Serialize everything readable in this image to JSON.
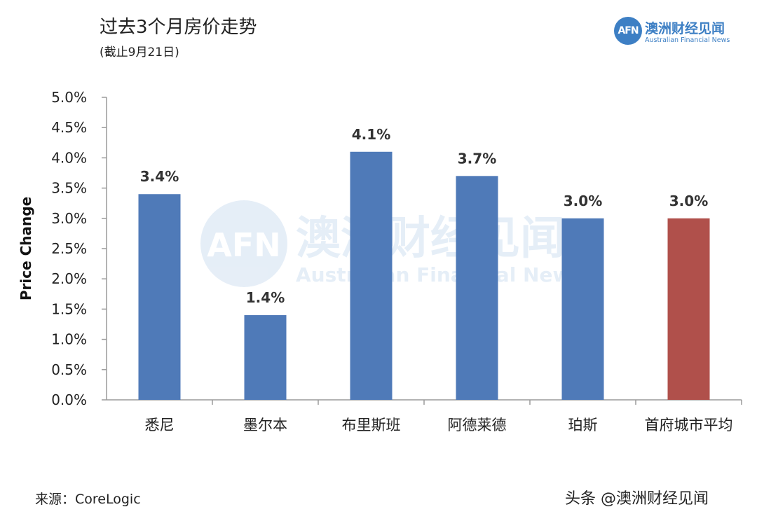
{
  "header": {
    "title": "过去3个月房价走势",
    "subtitle": "(截止9月21日)"
  },
  "logo": {
    "mark": "AFN",
    "name_cn": "澳洲财经见闻",
    "name_en": "Australian Financial News"
  },
  "watermark": {
    "mark": "AFN",
    "name_cn": "澳洲财经见闻",
    "name_en": "Australian Financial News"
  },
  "footer": {
    "source": "来源：CoreLogic",
    "credit": "头条 @澳洲财经见闻"
  },
  "colors": {
    "bar": "#4f7ab8",
    "bar_highlight": "#b0504b",
    "brand": "#3d7fc4"
  },
  "chart_data": {
    "type": "bar",
    "title": "过去3个月房价走势",
    "subtitle": "(截止9月21日)",
    "ylabel": "Price Change",
    "xlabel": "",
    "ylim": [
      0,
      5.0
    ],
    "yticks": [
      "0.0%",
      "0.5%",
      "1.0%",
      "1.5%",
      "2.0%",
      "2.5%",
      "3.0%",
      "3.5%",
      "4.0%",
      "4.5%",
      "5.0%"
    ],
    "categories": [
      "悉尼",
      "墨尔本",
      "布里斯班",
      "阿德莱德",
      "珀斯",
      "首府城市平均"
    ],
    "values": [
      3.4,
      1.4,
      4.1,
      3.7,
      3.0,
      3.0
    ],
    "data_labels": [
      "3.4%",
      "1.4%",
      "4.1%",
      "3.7%",
      "3.0%",
      "3.0%"
    ],
    "highlight_index": 5,
    "grid": false,
    "legend": "none"
  }
}
